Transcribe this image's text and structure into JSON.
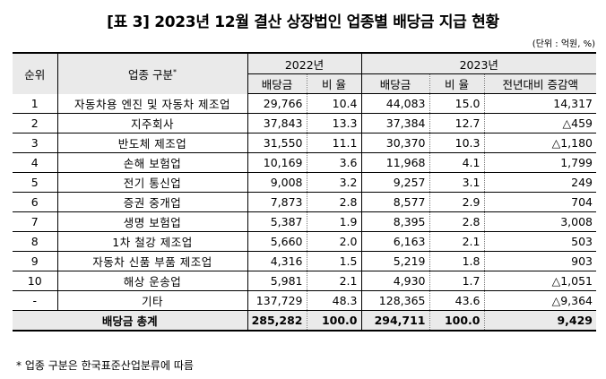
{
  "title": "[표 3] 2023년 12월 결산 상장법인 업종별 배당금 지급 현황",
  "unit": "(단위 : 억원, %)",
  "headers": {
    "rank": "순위",
    "industry": "업종 구분",
    "industry_mark": "*",
    "year_a": "2022년",
    "year_b": "2023년",
    "dividend": "배당금",
    "ratio": "비 율",
    "change": "전년대비 증감액"
  },
  "rows": [
    {
      "rank": "1",
      "industry": "자동차용 엔진 및 자동차 제조업",
      "d22": "29,766",
      "r22": "10.4",
      "d23": "44,083",
      "r23": "15.0",
      "chg": "14,317"
    },
    {
      "rank": "2",
      "industry": "지주회사",
      "d22": "37,843",
      "r22": "13.3",
      "d23": "37,384",
      "r23": "12.7",
      "chg": "△459"
    },
    {
      "rank": "3",
      "industry": "반도체 제조업",
      "d22": "31,550",
      "r22": "11.1",
      "d23": "30,370",
      "r23": "10.3",
      "chg": "△1,180"
    },
    {
      "rank": "4",
      "industry": "손해 보험업",
      "d22": "10,169",
      "r22": "3.6",
      "d23": "11,968",
      "r23": "4.1",
      "chg": "1,799"
    },
    {
      "rank": "5",
      "industry": "전기 통신업",
      "d22": "9,008",
      "r22": "3.2",
      "d23": "9,257",
      "r23": "3.1",
      "chg": "249"
    },
    {
      "rank": "6",
      "industry": "증권 중개업",
      "d22": "7,873",
      "r22": "2.8",
      "d23": "8,577",
      "r23": "2.9",
      "chg": "704"
    },
    {
      "rank": "7",
      "industry": "생명 보험업",
      "d22": "5,387",
      "r22": "1.9",
      "d23": "8,395",
      "r23": "2.8",
      "chg": "3,008"
    },
    {
      "rank": "8",
      "industry": "1차 철강 제조업",
      "d22": "5,660",
      "r22": "2.0",
      "d23": "6,163",
      "r23": "2.1",
      "chg": "503"
    },
    {
      "rank": "9",
      "industry": "자동차 신품 부품 제조업",
      "d22": "4,316",
      "r22": "1.5",
      "d23": "5,219",
      "r23": "1.8",
      "chg": "903"
    },
    {
      "rank": "10",
      "industry": "해상 운송업",
      "d22": "5,981",
      "r22": "2.1",
      "d23": "4,930",
      "r23": "1.7",
      "chg": "△1,051"
    },
    {
      "rank": "-",
      "industry": "기타",
      "d22": "137,729",
      "r22": "48.3",
      "d23": "128,365",
      "r23": "43.6",
      "chg": "△9,364"
    }
  ],
  "total": {
    "label": "배당금 총계",
    "d22": "285,282",
    "r22": "100.0",
    "d23": "294,711",
    "r23": "100.0",
    "chg": "9,429"
  },
  "footnote": "* 업종 구분은 한국표준산업분류에 따름"
}
